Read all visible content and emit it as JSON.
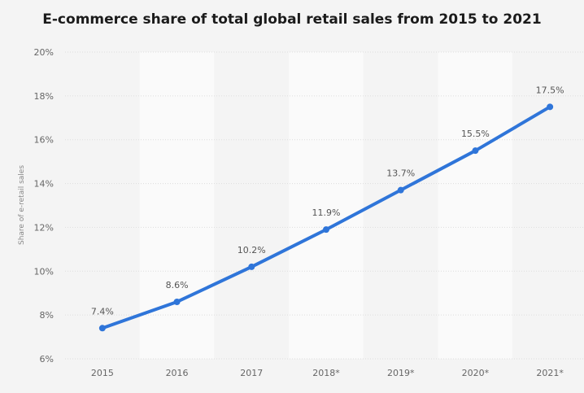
{
  "chart_data": {
    "type": "line",
    "title": "E-commerce share of total global retail sales from 2015 to 2021",
    "xlabel": "",
    "ylabel": "Share of e-retail sales",
    "categories": [
      "2015",
      "2016",
      "2017",
      "2018*",
      "2019*",
      "2020*",
      "2021*"
    ],
    "series": [
      {
        "values": [
          7.4,
          8.6,
          10.2,
          11.9,
          13.7,
          15.5,
          17.5
        ],
        "data_labels": [
          "7.4%",
          "8.6%",
          "10.2%",
          "11.9%",
          "13.7%",
          "15.5%",
          "17.5%"
        ],
        "color": "#2f75d9"
      }
    ],
    "ylim": [
      6,
      20
    ],
    "yticks": [
      6,
      8,
      10,
      12,
      14,
      16,
      18,
      20
    ],
    "ytick_labels": [
      "6%",
      "8%",
      "10%",
      "12%",
      "14%",
      "16%",
      "18%",
      "20%"
    ],
    "grid": true,
    "legend": "none"
  },
  "colors": {
    "line": "#2f75d9",
    "band_light": "#fafafa",
    "band_dark": "#f4f4f4",
    "grid": "#dddddd"
  }
}
